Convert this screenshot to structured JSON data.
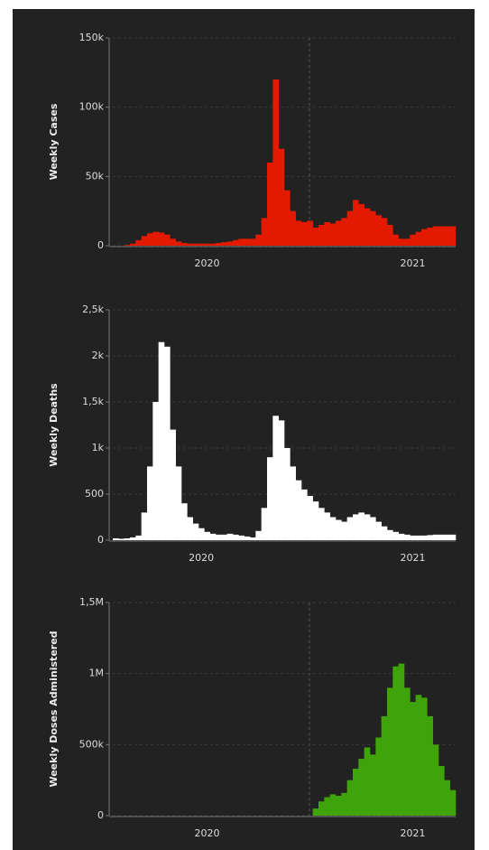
{
  "chart_data": [
    {
      "type": "bar",
      "ylabel": "Weekly Cases",
      "color": "#e31a00",
      "categories": [
        null,
        null,
        null,
        null,
        null,
        null,
        null,
        null,
        null,
        null,
        null,
        null,
        null,
        null,
        null,
        null,
        "2020",
        null,
        null,
        null,
        null,
        null,
        null,
        null,
        null,
        null,
        null,
        null,
        null,
        null,
        null,
        null,
        null,
        null,
        null,
        null,
        null,
        null,
        null,
        null,
        null,
        null,
        null,
        null,
        null,
        null,
        null,
        null,
        null,
        null,
        null,
        null,
        "2021",
        null,
        null,
        null,
        null,
        null,
        null,
        null
      ],
      "values": [
        0,
        0,
        500,
        1500,
        4000,
        7000,
        9000,
        10000,
        9500,
        8000,
        5000,
        3000,
        2000,
        1500,
        1500,
        1500,
        1500,
        1500,
        2000,
        2500,
        3000,
        4000,
        5000,
        5000,
        5000,
        8000,
        20000,
        60000,
        120000,
        70000,
        40000,
        25000,
        18000,
        17000,
        18000,
        13000,
        15000,
        17000,
        16000,
        18000,
        20000,
        25000,
        33000,
        30000,
        27000,
        25000,
        22000,
        20000,
        15000,
        8000,
        5000,
        5000,
        8000,
        10000,
        12000,
        13000,
        14000,
        14000,
        14000,
        14000
      ],
      "ylim": [
        0,
        150000
      ],
      "yticks": [
        0,
        {
          "value": 50000,
          "label": "50k"
        },
        {
          "value": 100000,
          "label": "100k"
        },
        {
          "value": 150000,
          "label": "150k"
        }
      ]
    },
    {
      "type": "bar",
      "ylabel": "Weekly Deaths",
      "color": "#ffffff",
      "categories": [
        null,
        null,
        null,
        null,
        null,
        null,
        null,
        null,
        null,
        null,
        null,
        null,
        null,
        null,
        null,
        "2020",
        null,
        null,
        null,
        null,
        null,
        null,
        null,
        null,
        null,
        null,
        null,
        null,
        null,
        null,
        null,
        null,
        null,
        null,
        null,
        null,
        null,
        null,
        null,
        null,
        null,
        null,
        null,
        null,
        null,
        null,
        null,
        null,
        null,
        null,
        null,
        null,
        "2021",
        null,
        null,
        null,
        null,
        null,
        null,
        null
      ],
      "values": [
        20,
        15,
        20,
        30,
        50,
        300,
        800,
        1500,
        2150,
        2100,
        1200,
        800,
        400,
        250,
        180,
        130,
        90,
        70,
        60,
        60,
        70,
        60,
        50,
        40,
        30,
        100,
        350,
        900,
        1350,
        1300,
        1000,
        800,
        650,
        550,
        480,
        420,
        350,
        300,
        250,
        220,
        200,
        250,
        280,
        300,
        280,
        250,
        200,
        150,
        110,
        90,
        70,
        60,
        50,
        50,
        50,
        55,
        60,
        60,
        60,
        60
      ],
      "ylim": [
        0,
        2500
      ],
      "yticks": [
        0,
        500,
        {
          "value": 1000,
          "label": "1k"
        },
        {
          "value": 1500,
          "label": "1,5k"
        },
        {
          "value": 2000,
          "label": "2k"
        },
        {
          "value": 2500,
          "label": "2,5k"
        }
      ]
    },
    {
      "type": "bar",
      "ylabel": "Weekly Doses Administered",
      "color": "#3fa40a",
      "categories": [
        null,
        null,
        null,
        null,
        null,
        null,
        null,
        null,
        null,
        null,
        null,
        null,
        null,
        null,
        null,
        null,
        "2020",
        null,
        null,
        null,
        null,
        null,
        null,
        null,
        null,
        null,
        null,
        null,
        null,
        null,
        null,
        null,
        null,
        null,
        null,
        null,
        null,
        null,
        null,
        null,
        null,
        null,
        null,
        null,
        null,
        null,
        null,
        null,
        null,
        null,
        null,
        null,
        "2021",
        null,
        null,
        null,
        null,
        null,
        null,
        null
      ],
      "values": [
        0,
        0,
        0,
        0,
        0,
        0,
        0,
        0,
        0,
        0,
        0,
        0,
        0,
        0,
        0,
        0,
        0,
        0,
        0,
        0,
        0,
        0,
        0,
        0,
        0,
        0,
        0,
        0,
        0,
        0,
        0,
        0,
        0,
        0,
        0,
        50000,
        100000,
        130000,
        150000,
        140000,
        160000,
        250000,
        330000,
        400000,
        480000,
        430000,
        550000,
        700000,
        900000,
        1050000,
        1070000,
        900000,
        800000,
        850000,
        830000,
        700000,
        500000,
        350000,
        250000,
        180000
      ],
      "ylim": [
        0,
        1500000
      ],
      "yticks": [
        0,
        {
          "value": 500000,
          "label": "500k"
        },
        {
          "value": 1000000,
          "label": "1M"
        },
        {
          "value": 1500000,
          "label": "1,5M"
        }
      ]
    }
  ]
}
